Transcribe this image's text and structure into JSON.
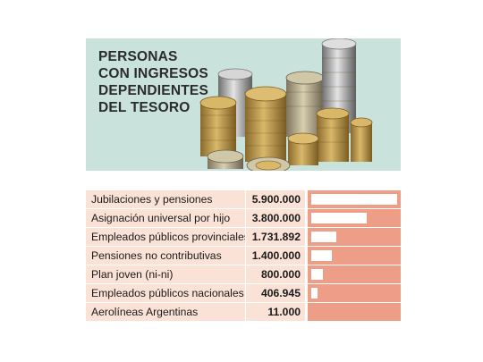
{
  "header": {
    "title_lines": [
      "PERSONAS",
      "CON INGRESOS",
      "DEPENDIENTES",
      "DEL TESORO"
    ]
  },
  "colors": {
    "header_bg": "#c9e3dc",
    "row_bg": "#fbe2d6",
    "bar_track": "#ee9d86",
    "bar_fill": "#ffffff"
  },
  "icons": {
    "illustration": "coin-stacks-illustration"
  },
  "chart_data": {
    "type": "bar",
    "orientation": "horizontal",
    "categories": [
      "Jubilaciones y pensiones",
      "Asignación universal por hijo",
      "Empleados públicos provinciales",
      "Pensiones no contributivas",
      "Plan joven (ni-ni)",
      "Empleados públicos nacionales",
      "Aerolíneas Argentinas"
    ],
    "value_labels": [
      "5.900.000",
      "3.800.000",
      "1.731.892",
      "1.400.000",
      "800.000",
      "406.945",
      "11.000"
    ],
    "values": [
      5900000,
      3800000,
      1731892,
      1400000,
      800000,
      406945,
      11000
    ],
    "xlim": [
      0,
      5900000
    ],
    "grid": false,
    "legend": "none"
  }
}
